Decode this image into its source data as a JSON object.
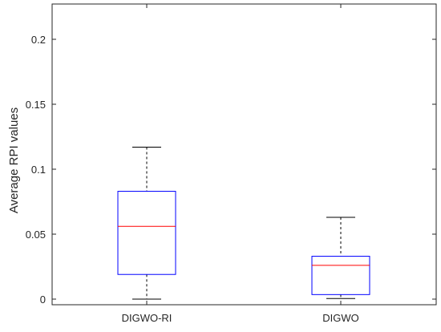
{
  "chart_data": {
    "type": "boxplot",
    "ylabel": "Average RPI values",
    "ylim": [
      0,
      0.225
    ],
    "yticks": [
      0,
      0.05,
      0.1,
      0.15,
      0.2
    ],
    "ytick_labels": [
      "0",
      "0.05",
      "0.1",
      "0.15",
      "0.2"
    ],
    "categories": [
      "DIGWO-RI",
      "DIGWO"
    ],
    "boxes": [
      {
        "category": "DIGWO-RI",
        "whisker_low": 0.0,
        "q1": 0.019,
        "median": 0.056,
        "q3": 0.083,
        "whisker_high": 0.117
      },
      {
        "category": "DIGWO",
        "whisker_low": 0.0005,
        "q1": 0.0035,
        "median": 0.026,
        "q3": 0.033,
        "whisker_high": 0.063
      }
    ],
    "grid": false,
    "colors": {
      "box": "#0000ff",
      "median": "#ff0000",
      "whisker": "#000000",
      "axes": "#262626"
    }
  }
}
